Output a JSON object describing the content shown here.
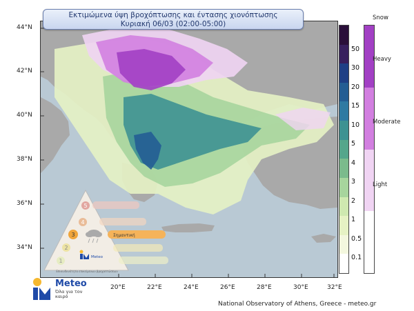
{
  "title": {
    "line1": "Εκτιμώμενα ύψη βροχόπτωσης και έντασης χιονόπτωσης",
    "line2": "Κυριακή 06/03 (02:00-05:00)"
  },
  "axes": {
    "lat_labels": [
      "44°N",
      "42°N",
      "40°N",
      "38°N",
      "36°N",
      "34°N"
    ],
    "lon_labels": [
      "20°E",
      "22°E",
      "24°E",
      "26°E",
      "28°E",
      "30°E",
      "32°E"
    ]
  },
  "rain_legend": {
    "ticks": [
      "50",
      "30",
      "20",
      "15",
      "10",
      "5",
      "4",
      "3",
      "2",
      "1",
      "0.5",
      "0.1"
    ],
    "colors": [
      "#2a0f3a",
      "#38205e",
      "#1f3f85",
      "#245d93",
      "#2f7aa2",
      "#3e9292",
      "#55a68b",
      "#7bbb8c",
      "#a7d59d",
      "#cfe9b0",
      "#e6f2c4",
      "#f3f7de",
      "#ffffff"
    ]
  },
  "snow_legend": {
    "title": "Snow",
    "levels": [
      "Heavy",
      "Moderate",
      "Light"
    ],
    "colors": [
      "#a240c4",
      "#d27fe0",
      "#f0d4f3"
    ]
  },
  "inset": {
    "levels": [
      "5",
      "4",
      "3",
      "2",
      "1"
    ],
    "active_label": "Σημαντική",
    "brand": "Meteo",
    "caption": "Επικινδυνότητα επικείμενων βροχοπτώσεων"
  },
  "footer": {
    "brand": "Meteo",
    "tagline": "Όλα για τον καιρό",
    "credit": "National Observatory of Athens, Greece - meteo.gr"
  }
}
